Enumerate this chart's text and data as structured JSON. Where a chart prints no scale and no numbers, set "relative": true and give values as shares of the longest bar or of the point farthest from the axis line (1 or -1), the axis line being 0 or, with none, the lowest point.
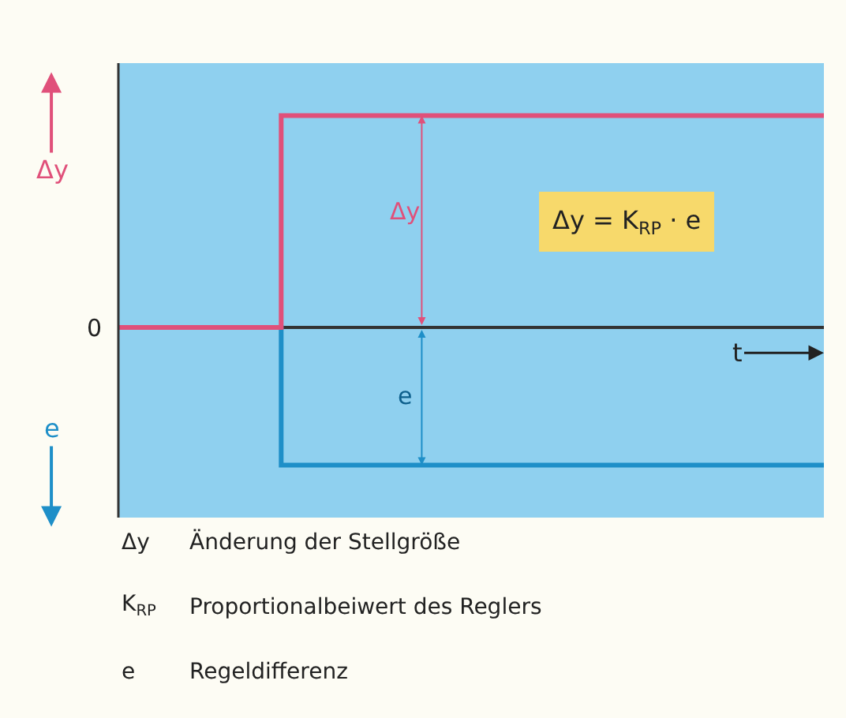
{
  "chart_data": {
    "type": "step",
    "relative": true,
    "tick_labels": false,
    "categories": [
      null,
      null,
      null,
      null,
      null,
      null,
      null,
      null,
      null,
      null,
      null,
      null,
      null,
      null
    ],
    "series": [
      {
        "color": "#1e8fc8",
        "values": [
          null,
          null,
          0,
          -0.65,
          -0.65,
          -0.65,
          -0.65,
          -0.65,
          -0.65,
          -0.65,
          -0.65,
          -0.65,
          -0.65,
          -0.65
        ]
      },
      {
        "color": "#e0507a",
        "values": [
          0,
          0,
          0,
          1,
          1,
          1,
          1,
          1,
          1,
          1,
          1,
          1,
          1,
          1
        ]
      }
    ],
    "annotations": [
      "Δy",
      "e",
      "0",
      "t",
      "Δy",
      "e",
      "Δy = K$_{RP}$ · e",
      "Δy",
      "Änderung der Stellgröße",
      "K$_{RP}$",
      "Proportionalbeiwert des Reglers",
      "e",
      "Regeldifferenz"
    ]
  }
}
